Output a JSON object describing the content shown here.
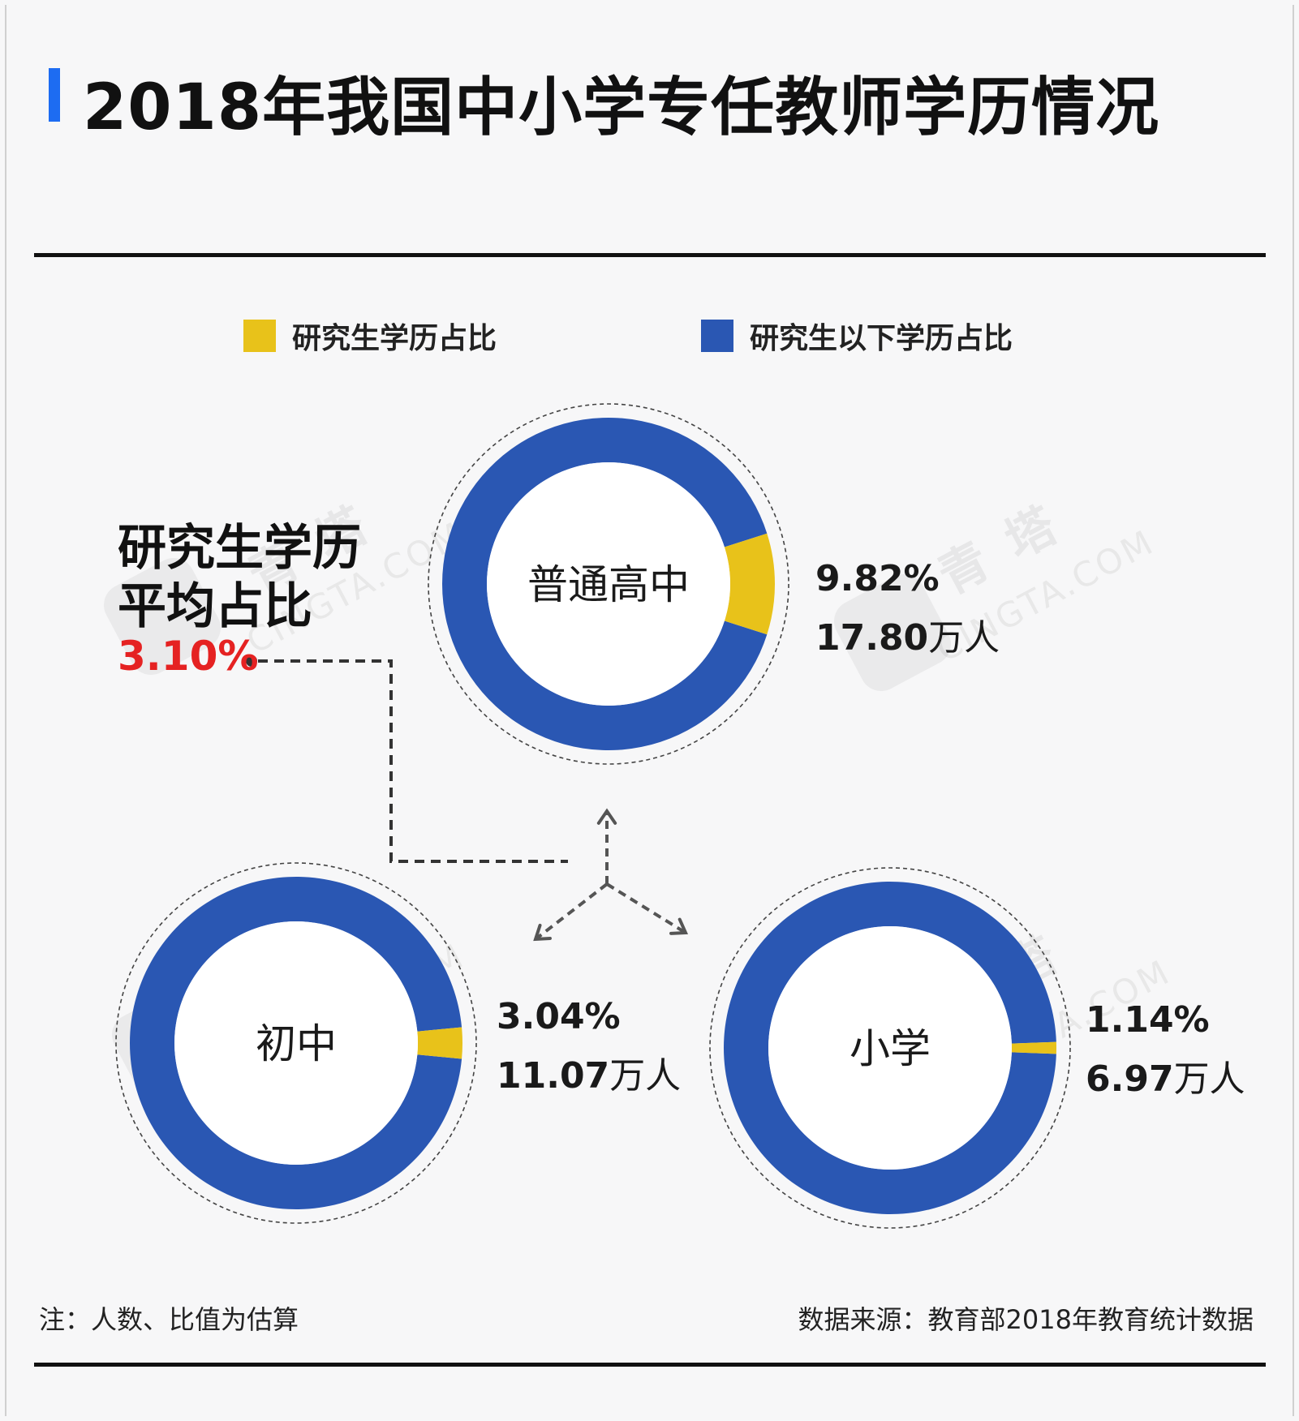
{
  "title": "2018年我国中小学专任教师学历情况",
  "legend": [
    {
      "label": "研究生学历占比",
      "color": "#e8c21a"
    },
    {
      "label": "研究生以下学历占比",
      "color": "#2a57b3"
    }
  ],
  "average": {
    "label_line1": "研究生学历",
    "label_line2": "平均占比",
    "value": "3.10%"
  },
  "chart_data": {
    "type": "pie",
    "style": "donut",
    "series_names": [
      "研究生学历占比",
      "研究生以下学历占比"
    ],
    "charts": [
      {
        "category": "普通高中",
        "graduate_pct": 9.82,
        "other_pct": 90.18,
        "graduate_pct_label": "9.82%",
        "count_num": "17.80",
        "count_unit": "万人"
      },
      {
        "category": "初中",
        "graduate_pct": 3.04,
        "other_pct": 96.96,
        "graduate_pct_label": "3.04%",
        "count_num": "11.07",
        "count_unit": "万人"
      },
      {
        "category": "小学",
        "graduate_pct": 1.14,
        "other_pct": 98.86,
        "graduate_pct_label": "1.14%",
        "count_num": "6.97",
        "count_unit": "万人"
      }
    ],
    "average_pct": 3.1
  },
  "watermark": {
    "main": "青 塔",
    "sub": "CINGTA.COM"
  },
  "footer": {
    "note": "注：人数、比值为估算",
    "source": "数据来源：教育部2018年教育统计数据"
  },
  "colors": {
    "graduate": "#e8c21a",
    "other": "#2a57b3",
    "accent_bar": "#1d6cf2",
    "average_value": "#e52222"
  }
}
